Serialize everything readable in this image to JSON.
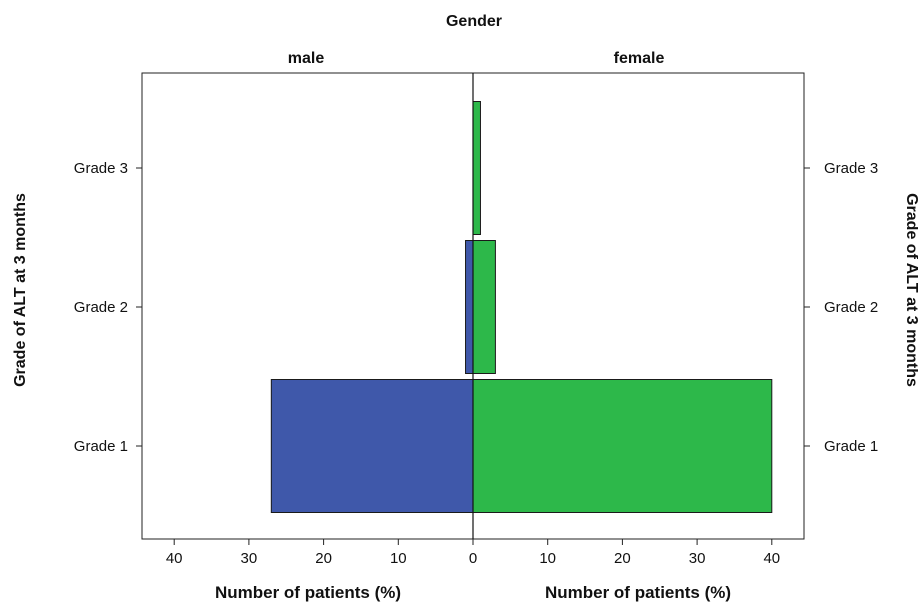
{
  "chart_data": {
    "type": "bar",
    "orientation": "horizontal-pyramid",
    "title": "Gender",
    "panels": [
      "male",
      "female"
    ],
    "categories": [
      "Grade 3",
      "Grade 2",
      "Grade 1"
    ],
    "series": [
      {
        "name": "male",
        "values": [
          0,
          1,
          27
        ],
        "color": "#3f58aa"
      },
      {
        "name": "female",
        "values": [
          1,
          3,
          40
        ],
        "color": "#2db84a"
      }
    ],
    "xlabel_left": "Number of patients (%)",
    "xlabel_right": "Number of patients (%)",
    "ylabel_left": "Grade of ALT at 3 months",
    "ylabel_right": "Grade of ALT at 3 months",
    "xlim": [
      0,
      44
    ],
    "x_ticks": [
      0,
      10,
      20,
      30,
      40
    ],
    "x_tick_labels": [
      "0",
      "10",
      "20",
      "30",
      "40"
    ],
    "grid": false,
    "legend": "none"
  }
}
